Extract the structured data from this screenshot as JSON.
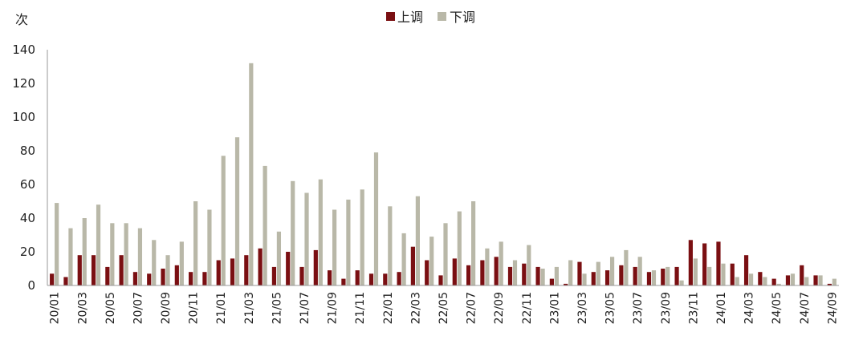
{
  "chart_data": {
    "type": "bar",
    "ylabel": "次",
    "ylim": [
      0,
      140
    ],
    "yticks": [
      0,
      20,
      40,
      60,
      80,
      100,
      120,
      140
    ],
    "grid": false,
    "legend_position": "top-center",
    "colors": {
      "up": "#7a0f12",
      "down": "#b9b8a8",
      "axis": "#999999"
    },
    "categories": [
      "20/01",
      "20/02",
      "20/03",
      "20/04",
      "20/05",
      "20/06",
      "20/07",
      "20/08",
      "20/09",
      "20/10",
      "20/11",
      "20/12",
      "21/01",
      "21/02",
      "21/03",
      "21/04",
      "21/05",
      "21/06",
      "21/07",
      "21/08",
      "21/09",
      "21/10",
      "21/11",
      "21/12",
      "22/01",
      "22/02",
      "22/03",
      "22/04",
      "22/05",
      "22/06",
      "22/07",
      "22/08",
      "22/09",
      "22/10",
      "22/11",
      "22/12",
      "23/01",
      "23/02",
      "23/03",
      "23/04",
      "23/05",
      "23/06",
      "23/07",
      "23/08",
      "23/09",
      "23/10",
      "23/11",
      "23/12",
      "24/01",
      "24/02",
      "24/03",
      "24/04",
      "24/05",
      "24/06",
      "24/07",
      "24/08",
      "24/09"
    ],
    "tick_labels": [
      "20/01",
      "20/03",
      "20/05",
      "20/07",
      "20/09",
      "20/11",
      "21/01",
      "21/03",
      "21/05",
      "21/07",
      "21/09",
      "21/11",
      "22/01",
      "22/03",
      "22/05",
      "22/07",
      "22/09",
      "22/11",
      "23/01",
      "23/03",
      "23/05",
      "23/07",
      "23/09",
      "23/11",
      "24/01",
      "24/03",
      "24/05",
      "24/07",
      "24/09"
    ],
    "series": [
      {
        "name": "上调",
        "values": [
          7,
          5,
          18,
          18,
          11,
          18,
          8,
          7,
          10,
          12,
          8,
          8,
          15,
          16,
          18,
          22,
          11,
          20,
          11,
          21,
          9,
          4,
          9,
          7,
          7,
          8,
          23,
          15,
          6,
          16,
          12,
          15,
          17,
          11,
          13,
          11,
          4,
          1,
          14,
          8,
          9,
          12,
          11,
          8,
          10,
          11,
          27,
          25,
          26,
          13,
          18,
          8,
          4,
          6,
          12,
          6,
          1
        ]
      },
      {
        "name": "下调",
        "values": [
          49,
          34,
          40,
          48,
          37,
          37,
          34,
          27,
          18,
          26,
          50,
          45,
          77,
          88,
          132,
          71,
          32,
          62,
          55,
          63,
          45,
          51,
          57,
          79,
          47,
          31,
          53,
          29,
          37,
          44,
          50,
          22,
          26,
          15,
          24,
          10,
          11,
          15,
          7,
          14,
          17,
          21,
          17,
          9,
          11,
          3,
          16,
          11,
          13,
          5,
          7,
          5,
          1,
          7,
          5,
          6,
          4
        ]
      }
    ]
  }
}
